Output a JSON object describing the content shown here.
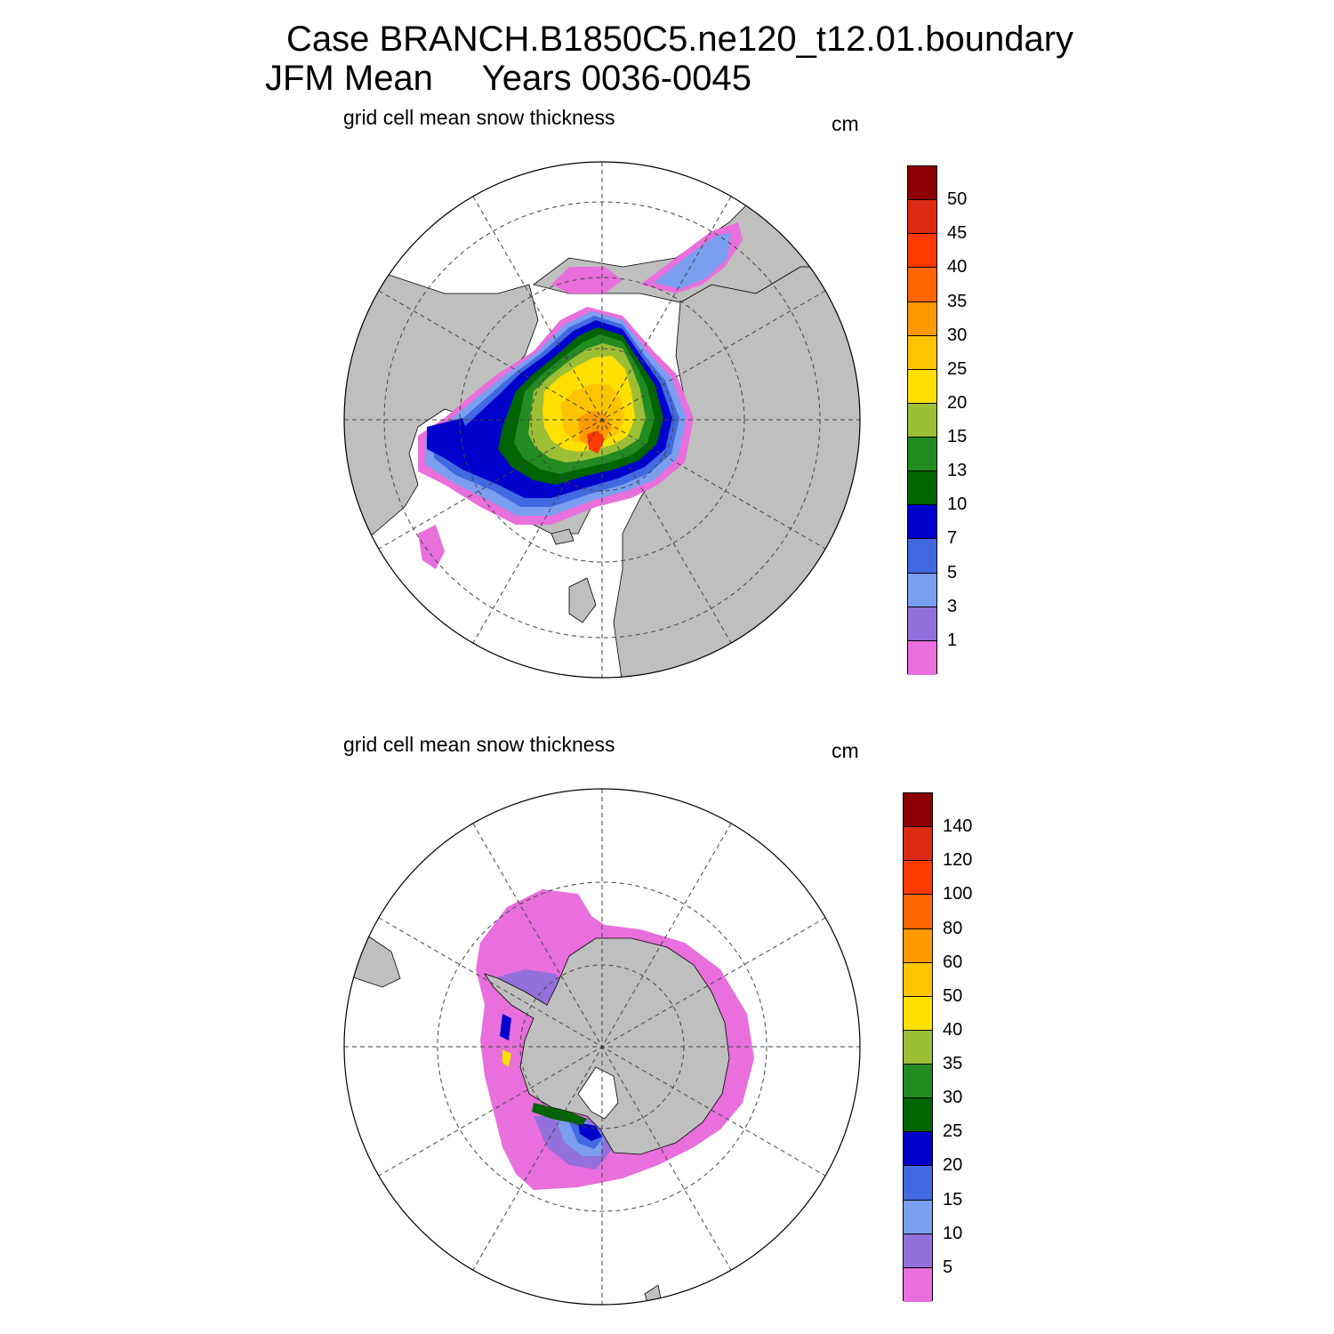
{
  "title": {
    "line1": "Case BRANCH.B1850C5.ne120_t12.01.boundary",
    "line2": "JFM Mean     Years 0036-0045"
  },
  "panels": [
    {
      "hemisphere": "north",
      "subtitle": "grid cell mean snow thickness",
      "units": "cm",
      "colorbar": {
        "labels": [
          "50",
          "45",
          "40",
          "35",
          "30",
          "25",
          "20",
          "15",
          "13",
          "10",
          "7",
          "5",
          "3",
          "1"
        ],
        "colors": [
          "#8b0000",
          "#dc2a12",
          "#ff3a00",
          "#ff6600",
          "#ff9900",
          "#ffc400",
          "#ffe000",
          "#9cbf36",
          "#228b22",
          "#006400",
          "#0000cd",
          "#4169e1",
          "#7b9ff0",
          "#9370db",
          "#e86fdc"
        ]
      }
    },
    {
      "hemisphere": "south",
      "subtitle": "grid cell mean snow thickness",
      "units": "cm",
      "colorbar": {
        "labels": [
          "140",
          "120",
          "100",
          "80",
          "60",
          "50",
          "40",
          "35",
          "30",
          "25",
          "20",
          "15",
          "10",
          "5"
        ],
        "colors": [
          "#8b0000",
          "#dc2a12",
          "#ff3a00",
          "#ff6600",
          "#ff9900",
          "#ffc400",
          "#ffe000",
          "#9cbf36",
          "#228b22",
          "#006400",
          "#0000cd",
          "#4169e1",
          "#7b9ff0",
          "#9370db",
          "#e86fdc"
        ]
      }
    }
  ],
  "map_colors": {
    "land": "#bfbfbf",
    "ocean": "#ffffff"
  }
}
